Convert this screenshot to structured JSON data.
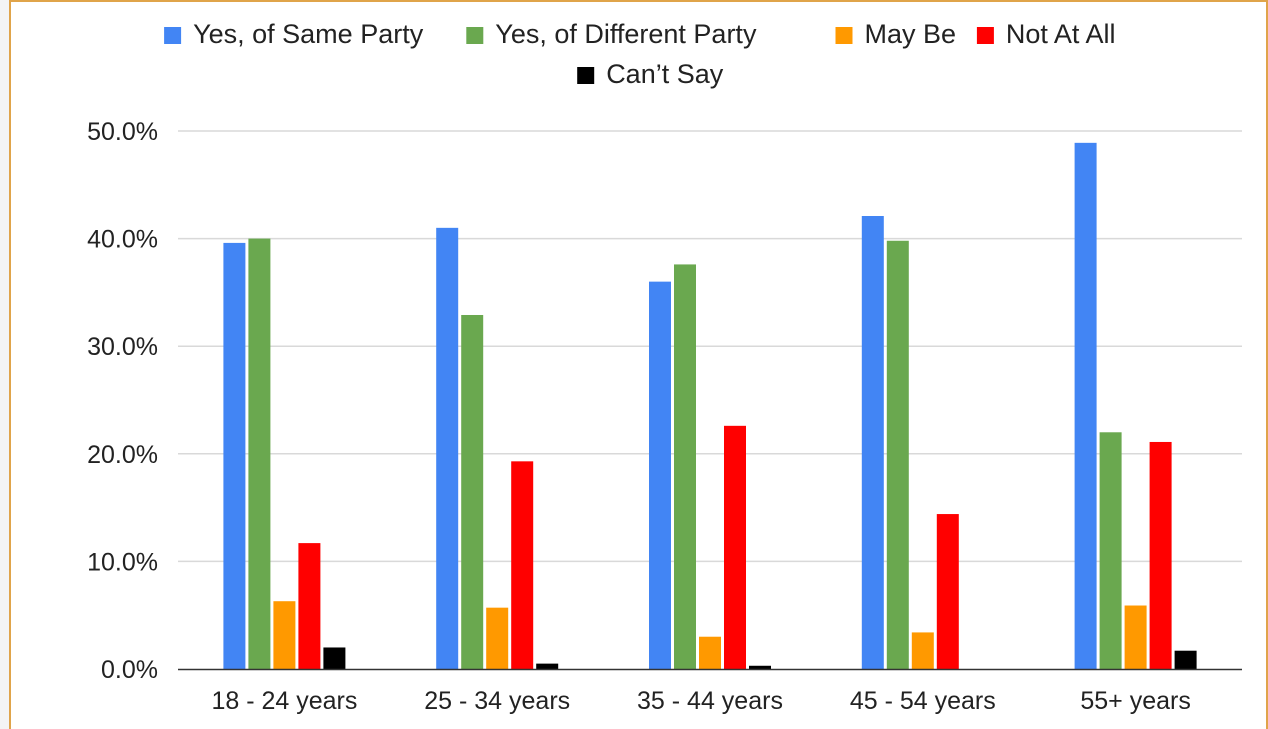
{
  "chart_data": {
    "type": "bar",
    "title": "",
    "xlabel": "",
    "ylabel": "",
    "categories": [
      "18 - 24 years",
      "25 - 34 years",
      "35 - 44 years",
      "45 - 54 years",
      "55+ years"
    ],
    "series": [
      {
        "name": "Yes, of Same Party",
        "color": "#4285f4",
        "values": [
          39.6,
          41.0,
          36.0,
          42.1,
          48.9
        ]
      },
      {
        "name": "Yes, of Different Party",
        "color": "#6aa84f",
        "values": [
          40.0,
          32.9,
          37.6,
          39.8,
          22.0
        ]
      },
      {
        "name": "May Be",
        "color": "#ff9900",
        "values": [
          6.3,
          5.7,
          3.0,
          3.4,
          5.9
        ]
      },
      {
        "name": "Not At All",
        "color": "#ff0000",
        "values": [
          11.7,
          19.3,
          22.6,
          14.4,
          21.1
        ]
      },
      {
        "name": "Can’t Say",
        "color": "#000000",
        "values": [
          2.0,
          0.5,
          0.3,
          0.0,
          1.7
        ]
      }
    ],
    "ylim": [
      0,
      50
    ],
    "yticks": [
      "0.0%",
      "10.0%",
      "20.0%",
      "30.0%",
      "40.0%",
      "50.0%"
    ],
    "grid": true,
    "legend_position": "top"
  }
}
